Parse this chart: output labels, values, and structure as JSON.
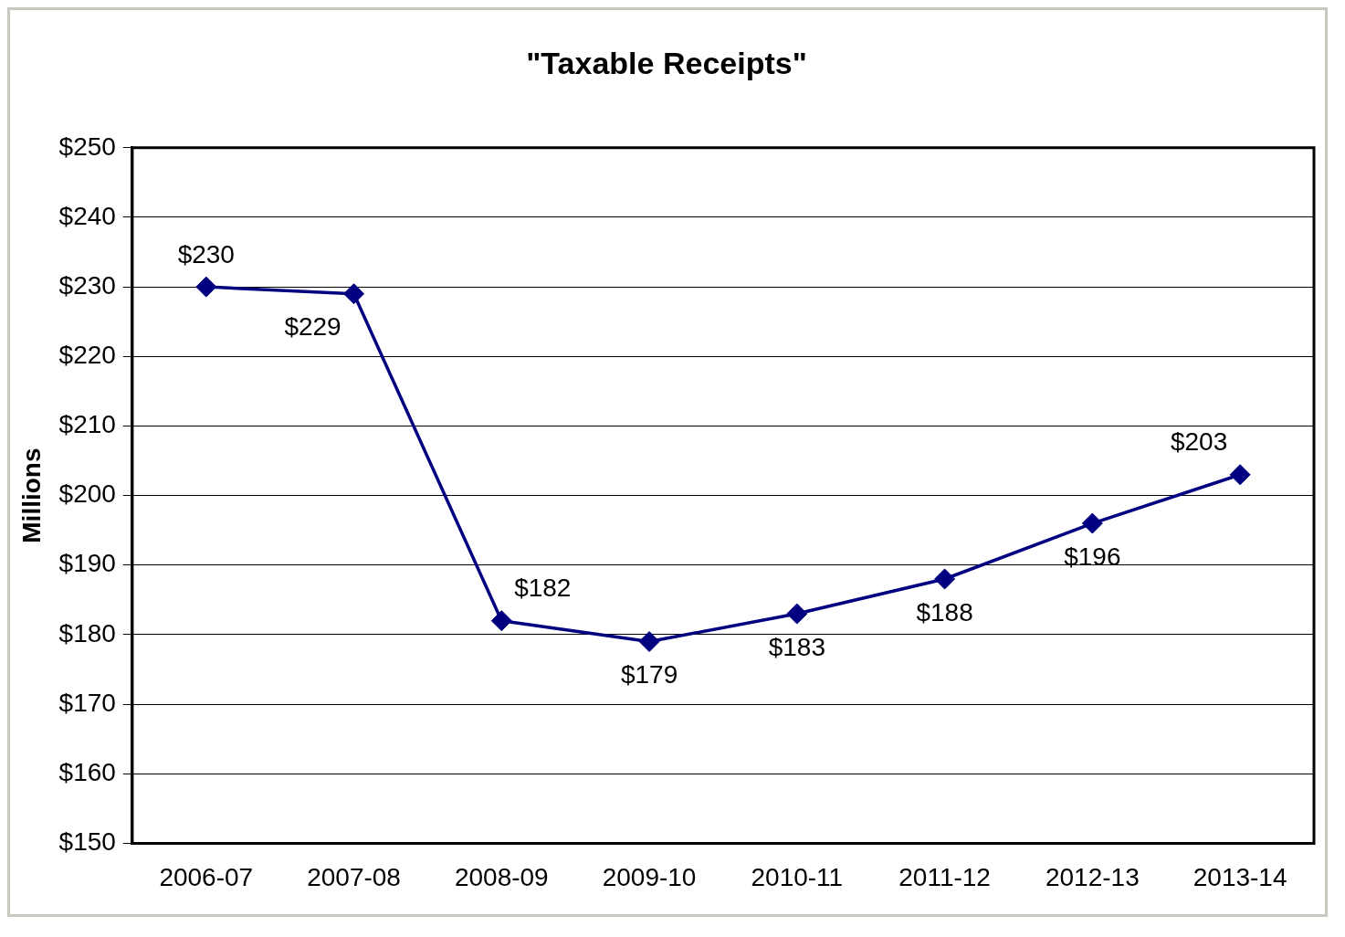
{
  "chart_data": {
    "type": "line",
    "title": "\"Taxable Receipts\"",
    "ylabel": "Millions",
    "categories": [
      "2006-07",
      "2007-08",
      "2008-09",
      "2009-10",
      "2010-11",
      "2011-12",
      "2012-13",
      "2013-14"
    ],
    "series": [
      {
        "color": "#000080",
        "values": [
          230,
          229,
          182,
          179,
          183,
          188,
          196,
          203
        ],
        "value_labels": [
          "$230",
          "$229",
          "$182",
          "$179",
          "$183",
          "$188",
          "$196",
          "$203"
        ]
      }
    ],
    "ylim": [
      150,
      250
    ],
    "yticks": [
      {
        "value": 150,
        "label": "$150"
      },
      {
        "value": 160,
        "label": "$160"
      },
      {
        "value": 170,
        "label": "$170"
      },
      {
        "value": 180,
        "label": "$180"
      },
      {
        "value": 190,
        "label": "$190"
      },
      {
        "value": 200,
        "label": "$200"
      },
      {
        "value": 210,
        "label": "$210"
      },
      {
        "value": 220,
        "label": "$220"
      },
      {
        "value": 230,
        "label": "$230"
      },
      {
        "value": 240,
        "label": "$240"
      },
      {
        "value": 250,
        "label": "$250"
      }
    ],
    "grid": "y",
    "legend": false,
    "marker": "diamond",
    "line_style": "solid"
  }
}
